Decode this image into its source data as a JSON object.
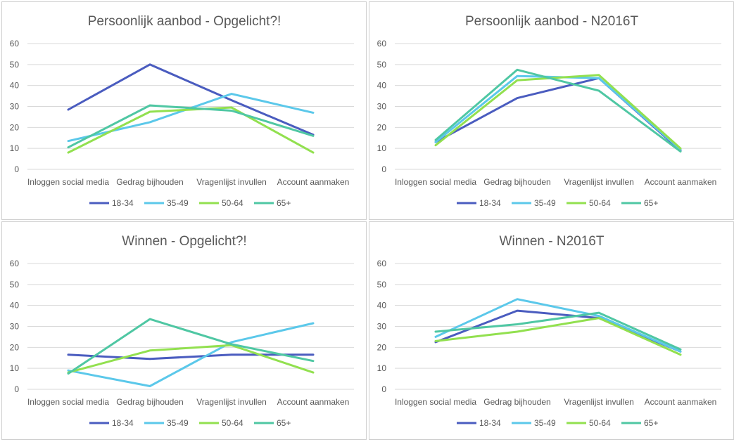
{
  "colors": {
    "18-34": "#4a5cbf",
    "35-49": "#5bc8ea",
    "50-64": "#92e04f",
    "65+": "#4fc7a3"
  },
  "chart_data": [
    {
      "type": "line",
      "title": "Persoonlijk aanbod - Opgelicht?!",
      "categories": [
        "Inloggen social media",
        "Gedrag bijhouden",
        "Vragenlijst invullen",
        "Account aanmaken"
      ],
      "ylim": [
        0,
        60
      ],
      "yticks": [
        0,
        10,
        20,
        30,
        40,
        50,
        60
      ],
      "grid": true,
      "legend_position": "bottom",
      "series": [
        {
          "name": "18-34",
          "values": [
            28.5,
            50,
            33,
            16.5
          ]
        },
        {
          "name": "35-49",
          "values": [
            13.5,
            22.5,
            36,
            27
          ]
        },
        {
          "name": "50-64",
          "values": [
            8,
            27.5,
            29.5,
            8
          ]
        },
        {
          "name": "65+",
          "values": [
            10.5,
            30.5,
            28,
            16
          ]
        }
      ]
    },
    {
      "type": "line",
      "title": "Persoonlijk aanbod - N2016T",
      "categories": [
        "Inloggen social media",
        "Gedrag bijhouden",
        "Vragenlijst invullen",
        "Account aanmaken"
      ],
      "ylim": [
        0,
        60
      ],
      "yticks": [
        0,
        10,
        20,
        30,
        40,
        50,
        60
      ],
      "grid": true,
      "legend_position": "bottom",
      "series": [
        {
          "name": "18-34",
          "values": [
            13,
            34,
            43.5,
            9
          ]
        },
        {
          "name": "35-49",
          "values": [
            13,
            44.5,
            43.5,
            9.5
          ]
        },
        {
          "name": "50-64",
          "values": [
            11.5,
            42.5,
            45,
            10
          ]
        },
        {
          "name": "65+",
          "values": [
            14,
            47.5,
            37.5,
            8.5
          ]
        }
      ]
    },
    {
      "type": "line",
      "title": "Winnen - Opgelicht?!",
      "categories": [
        "Inloggen social media",
        "Gedrag bijhouden",
        "Vragenlijst invullen",
        "Account aanmaken"
      ],
      "ylim": [
        0,
        60
      ],
      "yticks": [
        0,
        10,
        20,
        30,
        40,
        50,
        60
      ],
      "grid": true,
      "legend_position": "bottom",
      "series": [
        {
          "name": "18-34",
          "values": [
            16.5,
            14.5,
            16.5,
            16.5
          ]
        },
        {
          "name": "35-49",
          "values": [
            9,
            1.5,
            22.5,
            31.5
          ]
        },
        {
          "name": "50-64",
          "values": [
            8,
            18.5,
            21,
            8
          ]
        },
        {
          "name": "65+",
          "values": [
            7.5,
            33.5,
            21.5,
            13.5
          ]
        }
      ]
    },
    {
      "type": "line",
      "title": "Winnen - N2016T",
      "categories": [
        "Inloggen social media",
        "Gedrag bijhouden",
        "Vragenlijst invullen",
        "Account aanmaken"
      ],
      "ylim": [
        0,
        60
      ],
      "yticks": [
        0,
        10,
        20,
        30,
        40,
        50,
        60
      ],
      "grid": true,
      "legend_position": "bottom",
      "series": [
        {
          "name": "18-34",
          "values": [
            22.5,
            37.5,
            34,
            18
          ]
        },
        {
          "name": "35-49",
          "values": [
            25,
            43,
            35,
            18
          ]
        },
        {
          "name": "50-64",
          "values": [
            23,
            27.5,
            34,
            16.5
          ]
        },
        {
          "name": "65+",
          "values": [
            27.5,
            31,
            36.5,
            19
          ]
        }
      ]
    }
  ]
}
